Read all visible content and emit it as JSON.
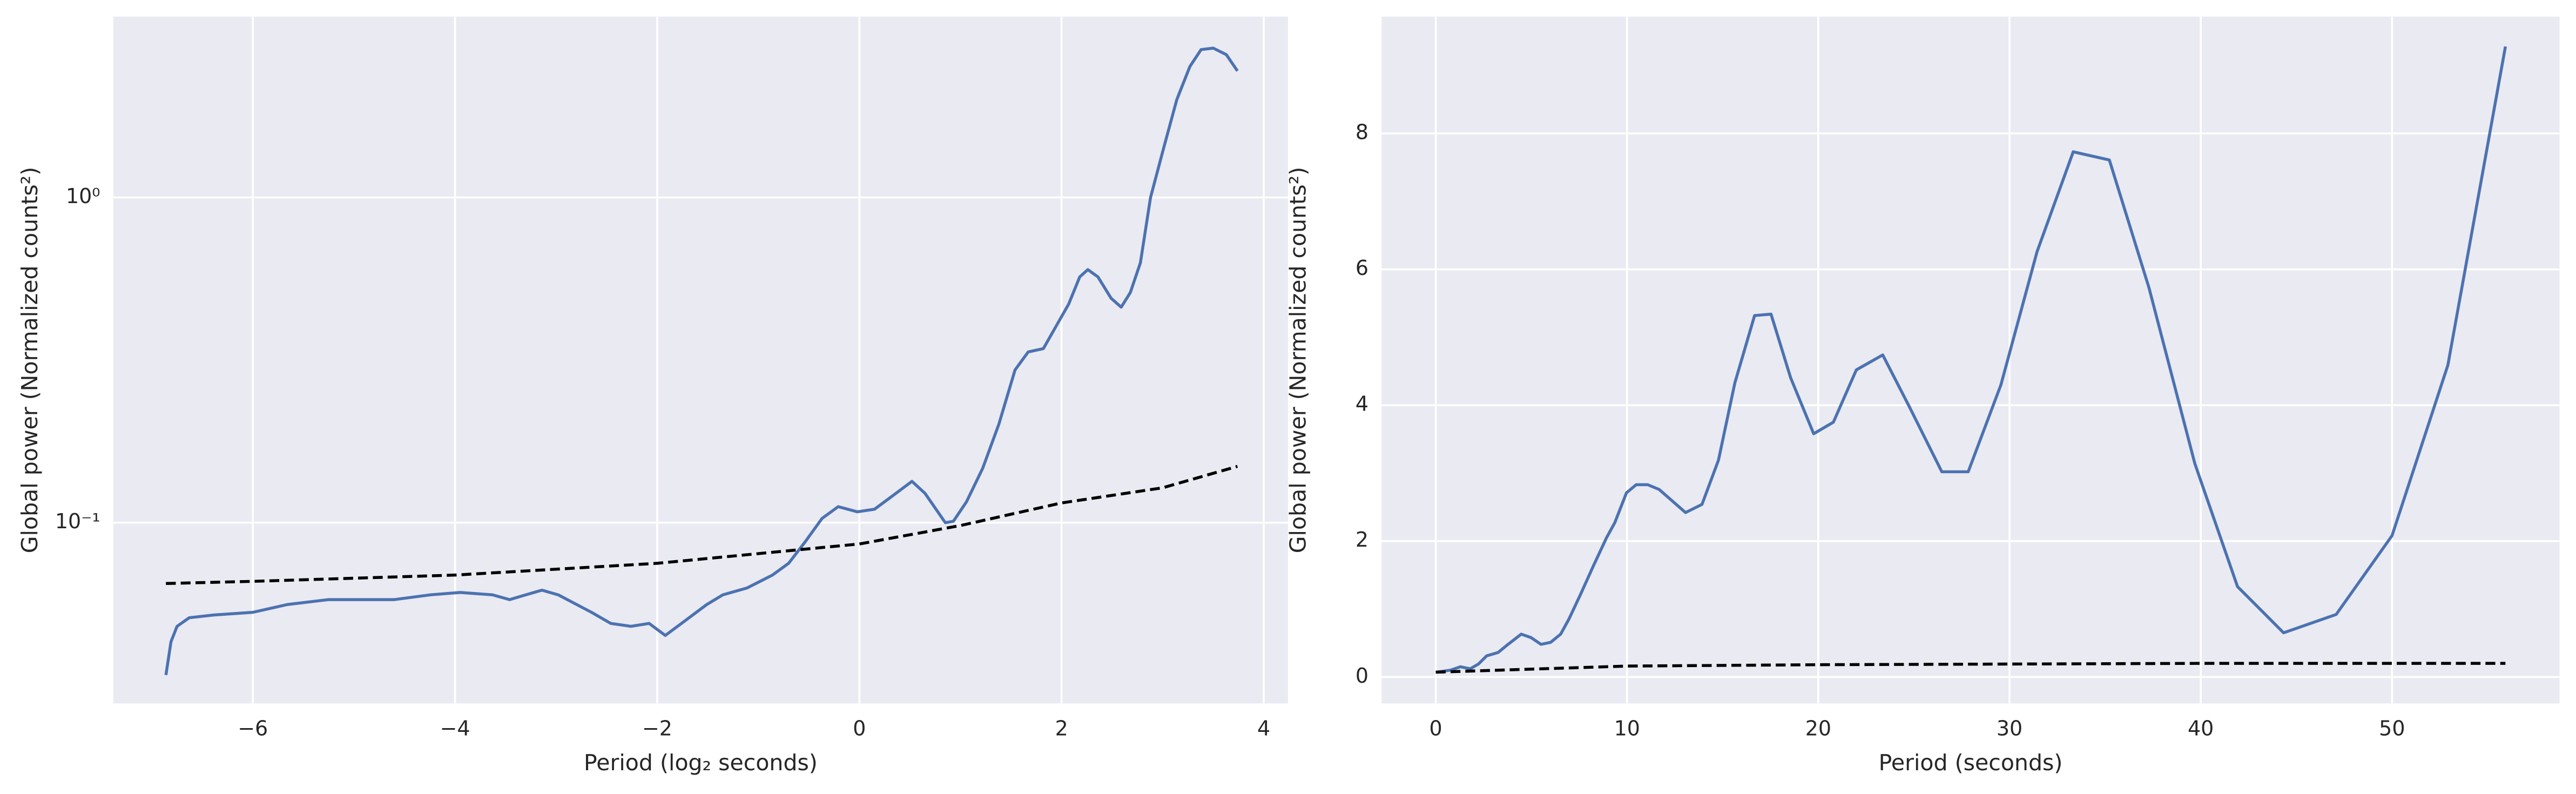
{
  "chart_data": [
    {
      "type": "line",
      "xlabel": "Period (log₂ seconds)",
      "ylabel": "Global power (Normalized counts²)",
      "xlim": [
        -7.38,
        4.24
      ],
      "ylim": [
        0.0278,
        3.6
      ],
      "yscale": "log",
      "grid": true,
      "xticks": [
        {
          "value": -6,
          "label": "−6"
        },
        {
          "value": -4,
          "label": "−4"
        },
        {
          "value": -2,
          "label": "−2"
        },
        0,
        2,
        4
      ],
      "yticks": [
        {
          "value": 0.1,
          "label": "10⁻¹"
        },
        {
          "value": 1,
          "label": "10⁰"
        }
      ],
      "series": [
        {
          "color": "#4c72b0",
          "linestyle": "solid",
          "x": [
            -6.86,
            -6.81,
            -6.75,
            -6.63,
            -6.39,
            -6.0,
            -5.66,
            -5.25,
            -4.6,
            -4.24,
            -3.95,
            -3.63,
            -3.46,
            -3.3,
            -3.14,
            -2.98,
            -2.65,
            -2.46,
            -2.26,
            -2.08,
            -1.92,
            -1.76,
            -1.51,
            -1.35,
            -1.11,
            -0.86,
            -0.7,
            -0.54,
            -0.37,
            -0.21,
            -0.02,
            0.15,
            0.36,
            0.52,
            0.65,
            0.85,
            0.93,
            1.06,
            1.22,
            1.38,
            1.54,
            1.67,
            1.82,
            1.93,
            2.07,
            2.18,
            2.26,
            2.36,
            2.49,
            2.59,
            2.68,
            2.78,
            2.88,
            3.01,
            3.14,
            3.27,
            3.38,
            3.5,
            3.63,
            3.74
          ],
          "values": [
            0.034,
            0.043,
            0.048,
            0.051,
            0.052,
            0.053,
            0.056,
            0.058,
            0.058,
            0.06,
            0.061,
            0.06,
            0.058,
            0.06,
            0.062,
            0.06,
            0.053,
            0.049,
            0.048,
            0.049,
            0.045,
            0.049,
            0.056,
            0.06,
            0.063,
            0.069,
            0.075,
            0.087,
            0.103,
            0.112,
            0.108,
            0.11,
            0.123,
            0.134,
            0.123,
            0.1,
            0.101,
            0.116,
            0.147,
            0.201,
            0.295,
            0.335,
            0.343,
            0.394,
            0.47,
            0.57,
            0.6,
            0.57,
            0.49,
            0.46,
            0.51,
            0.63,
            1.0,
            1.42,
            2.0,
            2.53,
            2.85,
            2.88,
            2.75,
            2.45
          ]
        },
        {
          "color": "#000000",
          "linestyle": "dashed",
          "x": [
            -6.86,
            -6,
            -4,
            -2,
            0,
            1,
            2,
            3,
            3.74
          ],
          "values": [
            0.065,
            0.066,
            0.069,
            0.075,
            0.086,
            0.098,
            0.115,
            0.128,
            0.149
          ]
        }
      ]
    },
    {
      "type": "line",
      "xlabel": "Period (seconds)",
      "ylabel": "Global power (Normalized counts²)",
      "xlim": [
        -2.83,
        58.76
      ],
      "ylim": [
        -0.39,
        9.72
      ],
      "yscale": "linear",
      "grid": true,
      "xticks": [
        0,
        10,
        20,
        30,
        40,
        50
      ],
      "yticks": [
        0,
        2,
        4,
        6,
        8
      ],
      "series": [
        {
          "color": "#4c72b0",
          "linestyle": "solid",
          "x": [
            0,
            0.77,
            1.29,
            1.8,
            2.23,
            2.66,
            3.26,
            3.78,
            4.47,
            4.98,
            5.5,
            6.01,
            6.53,
            6.96,
            7.56,
            8.25,
            8.93,
            9.36,
            9.97,
            10.48,
            11.08,
            11.68,
            12.37,
            13.06,
            13.92,
            14.78,
            15.64,
            16.67,
            17.53,
            18.56,
            19.76,
            20.79,
            21.99,
            23.37,
            24.74,
            26.46,
            27.84,
            29.55,
            31.44,
            33.33,
            35.22,
            37.29,
            39.69,
            41.92,
            44.33,
            47.08,
            50.0,
            52.92,
            55.93
          ],
          "values": [
            0.07,
            0.1,
            0.15,
            0.12,
            0.19,
            0.31,
            0.36,
            0.48,
            0.63,
            0.58,
            0.48,
            0.51,
            0.63,
            0.85,
            1.21,
            1.64,
            2.05,
            2.27,
            2.71,
            2.83,
            2.83,
            2.76,
            2.59,
            2.42,
            2.54,
            3.19,
            4.33,
            5.32,
            5.34,
            4.4,
            3.58,
            3.75,
            4.52,
            4.74,
            3.99,
            3.02,
            3.02,
            4.3,
            6.26,
            7.73,
            7.61,
            5.73,
            3.14,
            1.33,
            0.65,
            0.92,
            2.08,
            4.59,
            9.28
          ]
        },
        {
          "color": "#000000",
          "linestyle": "dashed",
          "x": [
            0,
            10,
            20,
            30,
            40,
            55.93
          ],
          "values": [
            0.07,
            0.16,
            0.18,
            0.19,
            0.2,
            0.2
          ]
        }
      ]
    }
  ]
}
